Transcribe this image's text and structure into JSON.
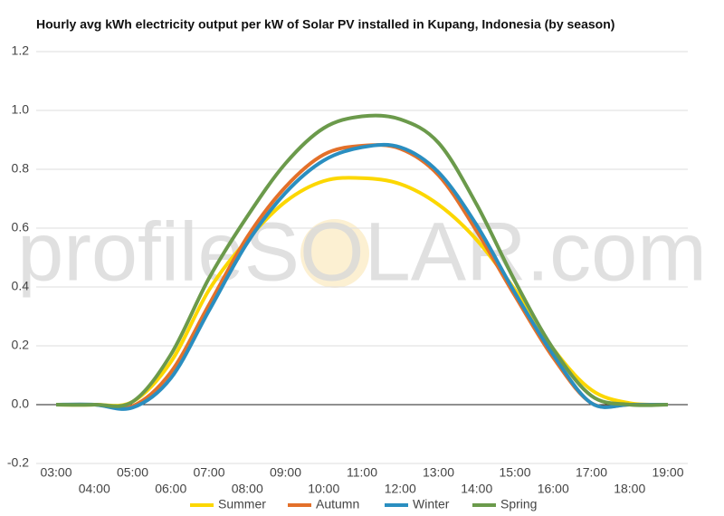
{
  "chart_data": {
    "type": "line",
    "title": "Hourly avg kWh electricity output per kW of Solar PV installed in Kupang, Indonesia (by season)",
    "watermark": "profileSOLAR.com",
    "categories": [
      "03:00",
      "04:00",
      "05:00",
      "06:00",
      "07:00",
      "08:00",
      "09:00",
      "10:00",
      "11:00",
      "12:00",
      "13:00",
      "14:00",
      "15:00",
      "16:00",
      "17:00",
      "18:00",
      "19:00"
    ],
    "series": [
      {
        "name": "Summer",
        "color": "#fcd700",
        "values": [
          0,
          0,
          0.01,
          0.145,
          0.39,
          0.56,
          0.69,
          0.76,
          0.77,
          0.75,
          0.68,
          0.56,
          0.39,
          0.19,
          0.05,
          0.005,
          0
        ]
      },
      {
        "name": "Autumn",
        "color": "#e3702a",
        "values": [
          0,
          0,
          -0.005,
          0.11,
          0.34,
          0.57,
          0.74,
          0.85,
          0.88,
          0.87,
          0.78,
          0.59,
          0.37,
          0.16,
          0.005,
          0,
          0
        ]
      },
      {
        "name": "Winter",
        "color": "#2a8ec0",
        "values": [
          0,
          0,
          -0.01,
          0.09,
          0.32,
          0.55,
          0.72,
          0.83,
          0.875,
          0.875,
          0.79,
          0.61,
          0.38,
          0.17,
          0.005,
          0,
          0
        ]
      },
      {
        "name": "Spring",
        "color": "#6b9a4b",
        "values": [
          0,
          0,
          0.01,
          0.17,
          0.43,
          0.64,
          0.82,
          0.94,
          0.98,
          0.97,
          0.89,
          0.68,
          0.42,
          0.19,
          0.03,
          0,
          0
        ]
      }
    ],
    "ylim": [
      -0.2,
      1.2
    ],
    "yticks": [
      -0.2,
      {
        "value": 0,
        "label": "0.0"
      },
      0.2,
      0.4,
      0.6,
      0.8,
      {
        "value": 1,
        "label": "1.0"
      },
      1.2
    ],
    "grid": true,
    "legend": "bottom"
  }
}
